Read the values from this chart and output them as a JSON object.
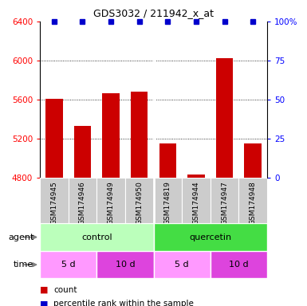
{
  "title": "GDS3032 / 211942_x_at",
  "samples": [
    "GSM174945",
    "GSM174946",
    "GSM174949",
    "GSM174950",
    "GSM174819",
    "GSM174944",
    "GSM174947",
    "GSM174948"
  ],
  "counts": [
    5610,
    5330,
    5660,
    5680,
    5150,
    4830,
    6020,
    5150
  ],
  "percentile_ranks": [
    100,
    100,
    100,
    100,
    100,
    100,
    100,
    100
  ],
  "ylim_left": [
    4800,
    6400
  ],
  "ylim_right": [
    0,
    100
  ],
  "yticks_left": [
    4800,
    5200,
    5600,
    6000,
    6400
  ],
  "yticks_right": [
    0,
    25,
    50,
    75,
    100
  ],
  "bar_color": "#cc0000",
  "dot_color": "#0000cc",
  "bar_width": 0.6,
  "agent_control_color": "#bbffbb",
  "agent_quercetin_color": "#44dd44",
  "time_5d_color": "#ff99ff",
  "time_10d_color": "#dd44dd",
  "sample_bg_color": "#cccccc",
  "agent_label": "agent",
  "time_label": "time",
  "control_label": "control",
  "quercetin_label": "quercetin",
  "time_labels": [
    "5 d",
    "10 d",
    "5 d",
    "10 d"
  ],
  "legend_count_label": "count",
  "legend_percentile_label": "percentile rank within the sample",
  "grid_lines": [
    5200,
    5600,
    6000
  ]
}
